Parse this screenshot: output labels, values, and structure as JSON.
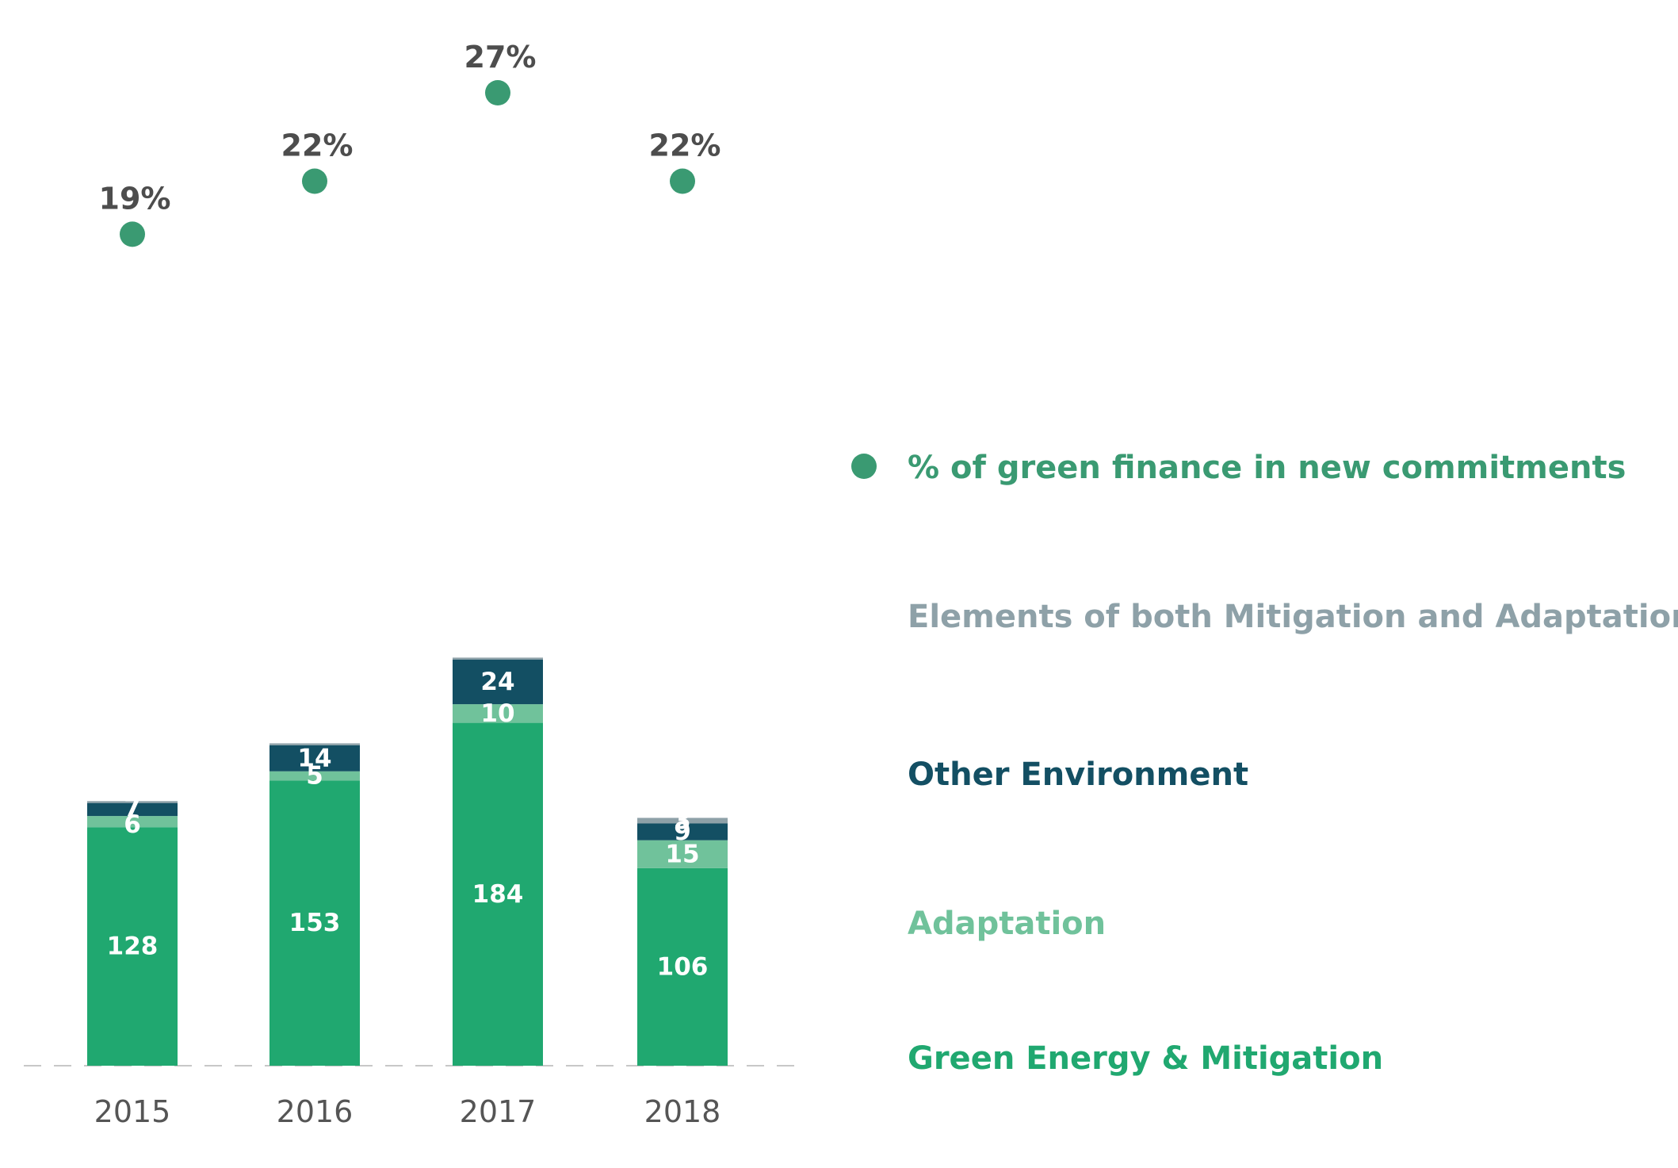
{
  "chart_data": {
    "type": "bar",
    "stacked": true,
    "categories": [
      "2015",
      "2016",
      "2017",
      "2018"
    ],
    "series": [
      {
        "name": "Green Energy & Mitigation",
        "color": "#20a870",
        "values": [
          128,
          153,
          184,
          106
        ],
        "labels": [
          "128",
          "153",
          "184",
          "106"
        ]
      },
      {
        "name": "Adaptation",
        "color": "#70c29b",
        "values": [
          6,
          5,
          10,
          15
        ],
        "labels": [
          "6",
          "5",
          "10",
          "15"
        ]
      },
      {
        "name": "Other Environment",
        "color": "#134f63",
        "values": [
          7,
          14,
          24,
          9
        ],
        "labels": [
          "7",
          "14",
          "24",
          "9"
        ]
      },
      {
        "name": "Elements of both Mitigation and Adaptation",
        "color": "#8ea1a8",
        "values": [
          1,
          1,
          1,
          3
        ],
        "labels": [
          "",
          "",
          "",
          "3"
        ]
      }
    ],
    "line_series": {
      "name": "% of green finance in new commitments",
      "color": "#3a9a72",
      "values": [
        19,
        22,
        27,
        22
      ],
      "labels": [
        "19%",
        "22%",
        "27%",
        "22%"
      ]
    },
    "legend": {
      "placement": "right",
      "items": [
        {
          "label": "% of green finance in new commitments",
          "color": "#3a9a72",
          "marker": "dot"
        },
        {
          "label": "Elements of both Mitigation and Adaptation",
          "color": "#8ea1a8",
          "marker": "none"
        },
        {
          "label": "Other Environment",
          "color": "#134f63",
          "marker": "none"
        },
        {
          "label": "Adaptation",
          "color": "#70c29b",
          "marker": "none"
        },
        {
          "label": "Green Energy & Mitigation",
          "color": "#20a870",
          "marker": "none"
        }
      ]
    },
    "title": "",
    "xlabel": "",
    "ylabel": "",
    "grid": false
  }
}
